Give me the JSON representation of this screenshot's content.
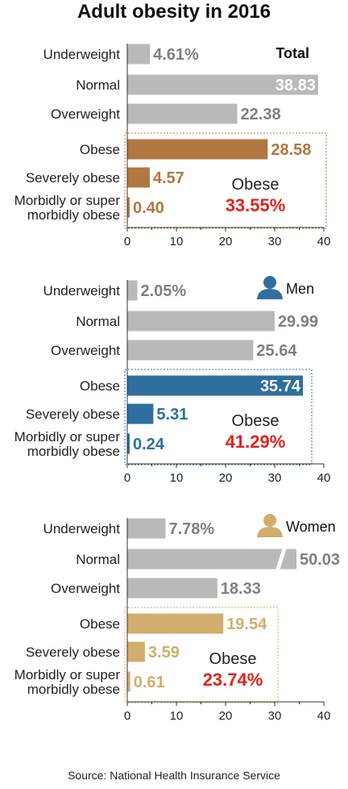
{
  "colors": {
    "gray": "#b9b9b9",
    "gray_text": "#7f7f7f",
    "total_accent": "#b07840",
    "men_accent": "#2e6f9f",
    "women_accent": "#d1ad6e",
    "red": "#e2231a"
  },
  "chart_data": [
    {
      "type": "bar",
      "title": "Total",
      "orientation": "horizontal",
      "categories": [
        "Underweight",
        "Normal",
        "Overweight",
        "Obese",
        "Severely obese",
        "Morbidly or super morbidly obese"
      ],
      "values": [
        4.61,
        38.83,
        22.38,
        28.58,
        4.57,
        0.4
      ],
      "value_labels": [
        "4.61%",
        "38.83",
        "22.38",
        "28.58",
        "4.57",
        "0.40"
      ],
      "xlim": [
        0,
        40
      ],
      "xticks": [
        "0",
        "10",
        "20",
        "30",
        "40"
      ],
      "obese_label": "Obese",
      "obese_total": "33.55%",
      "grid": false
    },
    {
      "type": "bar",
      "title": "Men",
      "orientation": "horizontal",
      "categories": [
        "Underweight",
        "Normal",
        "Overweight",
        "Obese",
        "Severely obese",
        "Morbidly or super morbidly obese"
      ],
      "values": [
        2.05,
        29.99,
        25.64,
        35.74,
        5.31,
        0.24
      ],
      "value_labels": [
        "2.05%",
        "29.99",
        "25.64",
        "35.74",
        "5.31",
        "0.24"
      ],
      "xlim": [
        0,
        40
      ],
      "xticks": [
        "0",
        "10",
        "20",
        "30",
        "40"
      ],
      "obese_label": "Obese",
      "obese_total": "41.29%",
      "grid": false
    },
    {
      "type": "bar",
      "title": "Women",
      "orientation": "horizontal",
      "categories": [
        "Underweight",
        "Normal",
        "Overweight",
        "Obese",
        "Severely obese",
        "Morbidly or super morbidly obese"
      ],
      "values": [
        7.78,
        50.03,
        18.33,
        19.54,
        3.59,
        0.61
      ],
      "value_labels": [
        "7.78%",
        "50.03",
        "18.33",
        "19.54",
        "3.59",
        "0.61"
      ],
      "xlim": [
        0,
        40
      ],
      "xticks": [
        "0",
        "10",
        "20",
        "30",
        "40"
      ],
      "axis_break": "Normal",
      "obese_label": "Obese",
      "obese_total": "23.74%",
      "grid": false
    }
  ],
  "header": {
    "title": "Adult obesity in 2016"
  },
  "footer": {
    "source": "Source: National Health Insurance Service"
  }
}
